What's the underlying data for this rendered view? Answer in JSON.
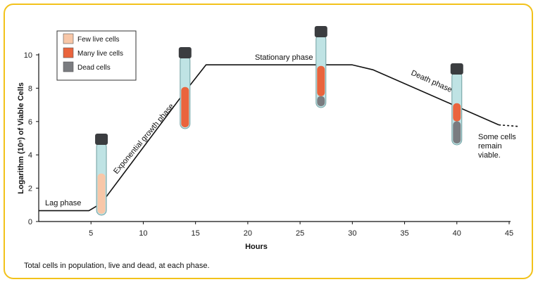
{
  "colors": {
    "frame": "#f2c21b",
    "curve": "#111111",
    "few_live": "#f8c7a8",
    "many_live": "#ea643d",
    "dead": "#7a7c80",
    "tube_glass": "#bfe3e4",
    "cap": "#3b3d40"
  },
  "chart_data": {
    "type": "line",
    "xlabel": "Hours",
    "ylabel": "Logarithm (10ⁿ) of Viable Cells",
    "xlim": [
      0,
      45
    ],
    "ylim": [
      0,
      10
    ],
    "xticks": [
      "5",
      "10",
      "15",
      "20",
      "25",
      "30",
      "35",
      "40",
      "45"
    ],
    "yticks": [
      "0",
      "2",
      "4",
      "6",
      "8",
      "10"
    ],
    "grid": false,
    "legend_position": "top-left",
    "series": [
      {
        "x": [
          0,
          4.8,
          6,
          14,
          16,
          30,
          32,
          44
        ],
        "y": [
          0.65,
          0.65,
          1.1,
          7.8,
          9.4,
          9.4,
          9.1,
          5.8
        ],
        "x_dashed": [
          44,
          46
        ],
        "y_dashed": [
          5.8,
          5.7
        ]
      }
    ],
    "phases": [
      {
        "label": "Lag phase"
      },
      {
        "label": "Exponential growth phase"
      },
      {
        "label": "Stationary phase"
      },
      {
        "label": "Death phase"
      }
    ],
    "annotation": [
      "Some cells",
      "remain",
      "viable."
    ],
    "legend": [
      {
        "label": "Few live cells",
        "color": "#f8c7a8"
      },
      {
        "label": "Many live cells",
        "color": "#ea643d"
      },
      {
        "label": "Dead cells",
        "color": "#7a7c80"
      }
    ],
    "tubes": [
      {
        "hour": 6,
        "few_live": 1.0,
        "many_live": 0.0,
        "dead": 0.0
      },
      {
        "hour": 14,
        "few_live": 0.0,
        "many_live": 1.0,
        "dead": 0.0
      },
      {
        "hour": 27,
        "few_live": 0.0,
        "many_live": 0.75,
        "dead": 0.25
      },
      {
        "hour": 40,
        "few_live": 0.0,
        "many_live": 0.45,
        "dead": 0.55
      }
    ]
  },
  "caption": "Total cells in population, live and dead, at each phase."
}
